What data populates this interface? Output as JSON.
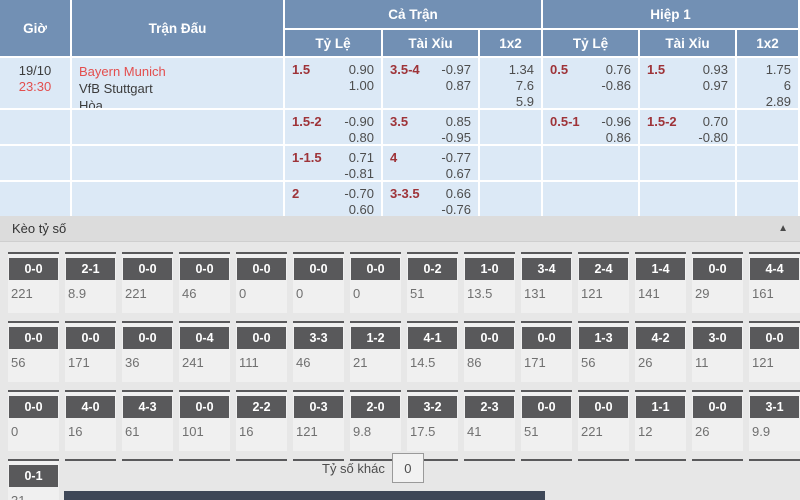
{
  "header": {
    "time": "Giờ",
    "match": "Trận Đấu",
    "full_time": "Cả Trận",
    "first_half": "Hiệp 1",
    "handicap": "Tỷ Lệ",
    "over_under": "Tài Xỉu",
    "one_x_two": "1x2"
  },
  "match": {
    "date": "19/10",
    "time": "23:30",
    "home": "Bayern Munich",
    "away": "VfB Stuttgart",
    "draw": "Hòa"
  },
  "odds_rows": [
    {
      "full_hdp_line": "1.5",
      "full_hdp_o1": "0.90",
      "full_hdp_o2": "1.00",
      "full_ou_line": "3.5-4",
      "full_ou_o1": "-0.97",
      "full_ou_o2": "0.87",
      "full_1x2": [
        "1.34",
        "7.6",
        "5.9"
      ],
      "half_hdp_line": "0.5",
      "half_hdp_o1": "0.76",
      "half_hdp_o2": "-0.86",
      "half_ou_line": "1.5",
      "half_ou_o1": "0.93",
      "half_ou_o2": "0.97",
      "half_1x2": [
        "1.75",
        "6",
        "2.89"
      ]
    },
    {
      "full_hdp_line": "1.5-2",
      "full_hdp_o1": "-0.90",
      "full_hdp_o2": "0.80",
      "full_ou_line": "3.5",
      "full_ou_o1": "0.85",
      "full_ou_o2": "-0.95",
      "half_hdp_line": "0.5-1",
      "half_hdp_o1": "-0.96",
      "half_hdp_o2": "0.86",
      "half_ou_line": "1.5-2",
      "half_ou_o1": "0.70",
      "half_ou_o2": "-0.80"
    },
    {
      "full_hdp_line": "1-1.5",
      "full_hdp_o1": "0.71",
      "full_hdp_o2": "-0.81",
      "full_ou_line": "4",
      "full_ou_o1": "-0.77",
      "full_ou_o2": "0.67"
    },
    {
      "full_hdp_line": "2",
      "full_hdp_o1": "-0.70",
      "full_hdp_o2": "0.60",
      "full_ou_line": "3-3.5",
      "full_ou_o1": "0.66",
      "full_ou_o2": "-0.76"
    }
  ],
  "score_section": {
    "title": "Kèo tỷ số",
    "collapse_icon": "▲",
    "other_score_label": "Tỷ số khác",
    "other_score_value": "0",
    "rows": [
      [
        {
          "score": "0-0",
          "odds": "221"
        },
        {
          "score": "2-1",
          "odds": "8.9"
        },
        {
          "score": "0-0",
          "odds": "221"
        },
        {
          "score": "0-0",
          "odds": "46"
        },
        {
          "score": "0-0",
          "odds": "0"
        },
        {
          "score": "0-0",
          "odds": "0"
        },
        {
          "score": "0-0",
          "odds": "0"
        },
        {
          "score": "0-2",
          "odds": "51"
        },
        {
          "score": "1-0",
          "odds": "13.5"
        },
        {
          "score": "3-4",
          "odds": "131"
        },
        {
          "score": "2-4",
          "odds": "121"
        },
        {
          "score": "1-4",
          "odds": "141"
        },
        {
          "score": "0-0",
          "odds": "29"
        },
        {
          "score": "4-4",
          "odds": "161"
        }
      ],
      [
        {
          "score": "0-0",
          "odds": "56"
        },
        {
          "score": "0-0",
          "odds": "171"
        },
        {
          "score": "0-0",
          "odds": "36"
        },
        {
          "score": "0-4",
          "odds": "241"
        },
        {
          "score": "0-0",
          "odds": "111"
        },
        {
          "score": "3-3",
          "odds": "46"
        },
        {
          "score": "1-2",
          "odds": "21"
        },
        {
          "score": "4-1",
          "odds": "14.5"
        },
        {
          "score": "0-0",
          "odds": "86"
        },
        {
          "score": "0-0",
          "odds": "171"
        },
        {
          "score": "1-3",
          "odds": "56"
        },
        {
          "score": "4-2",
          "odds": "26"
        },
        {
          "score": "3-0",
          "odds": "11"
        },
        {
          "score": "0-0",
          "odds": "121"
        }
      ],
      [
        {
          "score": "0-0",
          "odds": "0"
        },
        {
          "score": "4-0",
          "odds": "16"
        },
        {
          "score": "4-3",
          "odds": "61"
        },
        {
          "score": "0-0",
          "odds": "101"
        },
        {
          "score": "2-2",
          "odds": "16"
        },
        {
          "score": "0-3",
          "odds": "121"
        },
        {
          "score": "2-0",
          "odds": "9.8"
        },
        {
          "score": "3-2",
          "odds": "17.5"
        },
        {
          "score": "2-3",
          "odds": "41"
        },
        {
          "score": "0-0",
          "odds": "51"
        },
        {
          "score": "0-0",
          "odds": "221"
        },
        {
          "score": "1-1",
          "odds": "12"
        },
        {
          "score": "0-0",
          "odds": "26"
        },
        {
          "score": "3-1",
          "odds": "9.9"
        }
      ],
      [
        {
          "score": "0-1",
          "odds": "31"
        }
      ]
    ]
  },
  "colors": {
    "header_bg": "#7290b4",
    "row_bg": "#dce9f6",
    "accent_red": "#e34e4e",
    "line_red": "#9e3338",
    "chip_bg": "#59595b",
    "section_bg": "#e7e7e7",
    "bottom_bar": "#3e4757"
  }
}
